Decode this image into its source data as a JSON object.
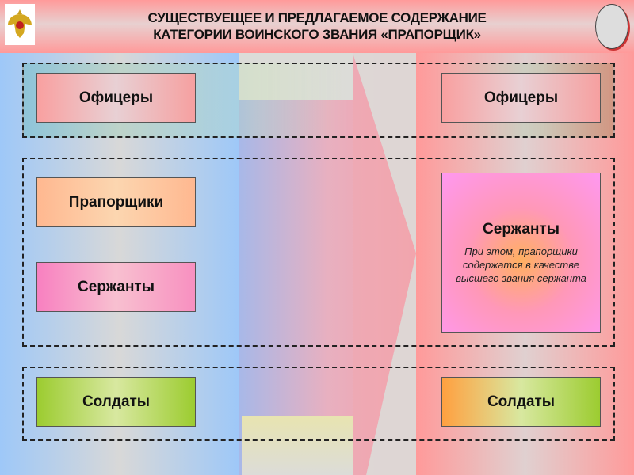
{
  "header": {
    "title_line1": "СУЩЕСТВУЕЩЕЕ И ПРЕДЛАГАЕМОЕ СОДЕРЖАНИЕ",
    "title_line2": "КАТЕГОРИИ ВОИНСКОГО ЗВАНИЯ «ПРАПОРЩИК»"
  },
  "left": {
    "officers": "Офицеры",
    "praporshchiki": "Прапорщики",
    "serzhanty": "Сержанты",
    "soldaty": "Солдаты"
  },
  "right": {
    "officers": "Офицеры",
    "serzhanty": "Сержанты",
    "note": "При этом, прапорщики содержатся в качестве высшего звания сержанта",
    "soldaty": "Солдаты"
  },
  "icons": {
    "emblem": "double-headed-eagle-emblem",
    "arrow": "right-arrow"
  }
}
